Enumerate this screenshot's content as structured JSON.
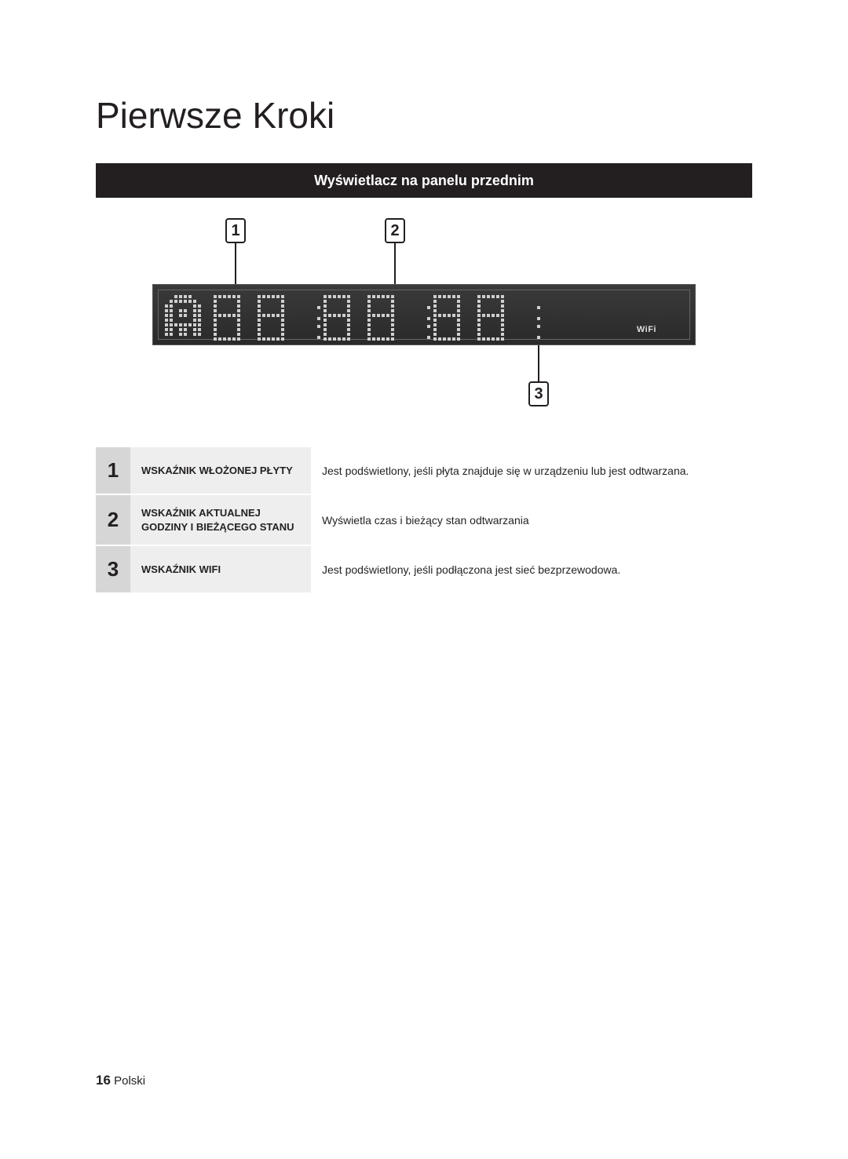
{
  "page": {
    "title": "Pierwsze Kroki",
    "banner": "Wyświetlacz na panelu przednim",
    "page_number": "16",
    "language": "Polski"
  },
  "diagram": {
    "callouts": {
      "c1": "1",
      "c2": "2",
      "c3": "3"
    },
    "wifi_label": "WiFi",
    "panel_bg_top": "#3a3a3a",
    "panel_bg_bottom": "#2a2a2a",
    "dot_color": "#cfcfcf",
    "callout_border": "#231f20"
  },
  "table": {
    "rows": [
      {
        "num": "1",
        "name": "WSKAŹNIK WŁOŻONEJ PŁYTY",
        "desc": "Jest podświetlony, jeśli płyta znajduje się w urządzeniu lub jest odtwarzana."
      },
      {
        "num": "2",
        "name": "WSKAŹNIK AKTUALNEJ GODZINY I BIEŻĄCEGO STANU",
        "desc": "Wyświetla czas i bieżący stan odtwarzania"
      },
      {
        "num": "3",
        "name": "WSKAŹNIK WIFI",
        "desc": "Jest podświetlony, jeśli podłączona jest sieć bezprzewodowa."
      }
    ],
    "num_bg": "#d6d6d6",
    "name_bg": "#eeeeee",
    "num_fontsize": 26,
    "name_fontsize": 13,
    "desc_fontsize": 14
  }
}
